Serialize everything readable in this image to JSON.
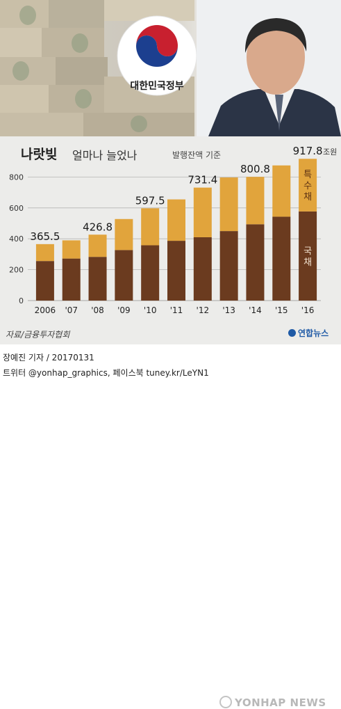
{
  "header": {
    "emblem_text": "대한민국정부",
    "title_main": "나랏빚",
    "title_sub": "얼마나 늘었나",
    "title_note": "발행잔액 기준"
  },
  "chart_data": {
    "type": "bar",
    "stacked": true,
    "categories": [
      "2006",
      "'07",
      "'08",
      "'09",
      "'10",
      "'11",
      "'12",
      "'13",
      "'14",
      "'15",
      "'16"
    ],
    "series": [
      {
        "name": "국채",
        "values": [
          256,
          272,
          283,
          327,
          358,
          387,
          410,
          450,
          494,
          543,
          577
        ],
        "color": "#6b3b1f"
      },
      {
        "name": "특수채",
        "values": [
          109.5,
          118,
          143.8,
          201,
          239.5,
          268,
          321.4,
          347,
          306.8,
          332,
          340.8
        ],
        "color": "#e1a43c"
      }
    ],
    "totals": [
      365.5,
      390,
      426.8,
      528,
      597.5,
      655,
      731.4,
      797,
      800.8,
      875,
      917.8
    ],
    "data_labels": [
      {
        "index": 0,
        "text": "365.5"
      },
      {
        "index": 2,
        "text": "426.8"
      },
      {
        "index": 4,
        "text": "597.5"
      },
      {
        "index": 6,
        "text": "731.4"
      },
      {
        "index": 8,
        "text": "800.8"
      },
      {
        "index": 10,
        "text": "917.8",
        "unit": "조원"
      }
    ],
    "y_ticks": [
      0,
      200,
      400,
      600,
      800
    ],
    "ylim": [
      0,
      1000
    ],
    "grid": true,
    "legend_inline": {
      "special": "특수채",
      "national": "국채"
    }
  },
  "source": "자료/금융투자협회",
  "logo_text": "연합뉴스",
  "footer": {
    "credit": "장예진 기자 / 20170131",
    "social": "트위터 @yonhap_graphics, 페이스북 tuney.kr/LeYN1"
  },
  "watermark": "YONHAP NEWS"
}
